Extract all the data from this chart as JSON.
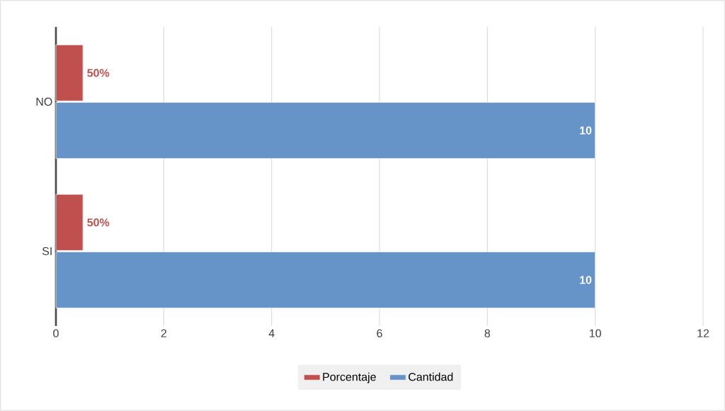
{
  "chart_data": {
    "type": "bar",
    "orientation": "horizontal",
    "categories": [
      "NO",
      "SI"
    ],
    "series": [
      {
        "name": "Porcentaje",
        "color": "#c0504d",
        "values": [
          0.5,
          0.5
        ],
        "value_labels": [
          "50%",
          "50%"
        ]
      },
      {
        "name": "Cantidad",
        "color": "#6794c8",
        "values": [
          10,
          10
        ],
        "value_labels": [
          "10",
          "10"
        ]
      }
    ],
    "xlim": [
      0,
      12
    ],
    "xticks": [
      0,
      2,
      4,
      6,
      8,
      10,
      12
    ],
    "grid": "x",
    "legend": "bottom"
  }
}
